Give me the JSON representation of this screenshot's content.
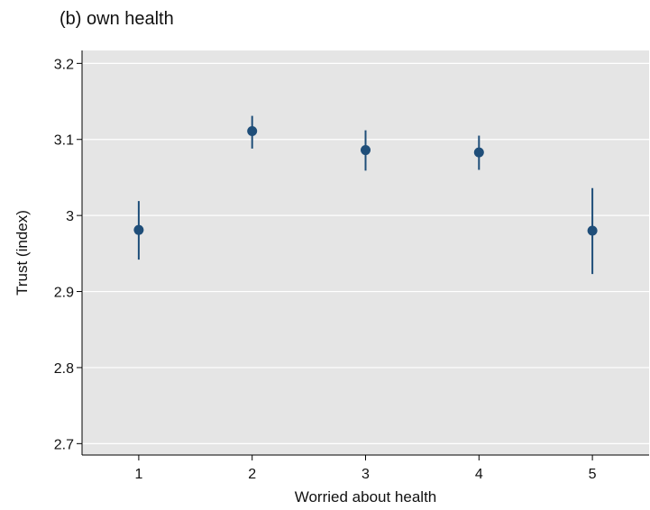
{
  "colors": {
    "plot_background": "#e5e5e5",
    "gridline": "#ffffff",
    "marker": "#1f4e79",
    "axis": "#000000"
  },
  "chart_data": {
    "type": "scatter",
    "title": "(b) own health",
    "xlabel": "Worried about health",
    "ylabel": "Trust (index)",
    "x_ticks": [
      "1",
      "2",
      "3",
      "4",
      "5"
    ],
    "y_ticks": [
      "2.7",
      "2.8",
      "2.9",
      "3",
      "3.1",
      "3.2"
    ],
    "xlim": [
      0.5,
      5.5
    ],
    "ylim": [
      2.685,
      3.217
    ],
    "grid": true,
    "legend": "none",
    "points": [
      {
        "x": 1,
        "y": 2.981,
        "ci_low": 2.942,
        "ci_high": 3.019
      },
      {
        "x": 2,
        "y": 3.111,
        "ci_low": 3.088,
        "ci_high": 3.131
      },
      {
        "x": 3,
        "y": 3.086,
        "ci_low": 3.059,
        "ci_high": 3.112
      },
      {
        "x": 4,
        "y": 3.083,
        "ci_low": 3.06,
        "ci_high": 3.105
      },
      {
        "x": 5,
        "y": 2.98,
        "ci_low": 2.923,
        "ci_high": 3.036
      }
    ]
  }
}
